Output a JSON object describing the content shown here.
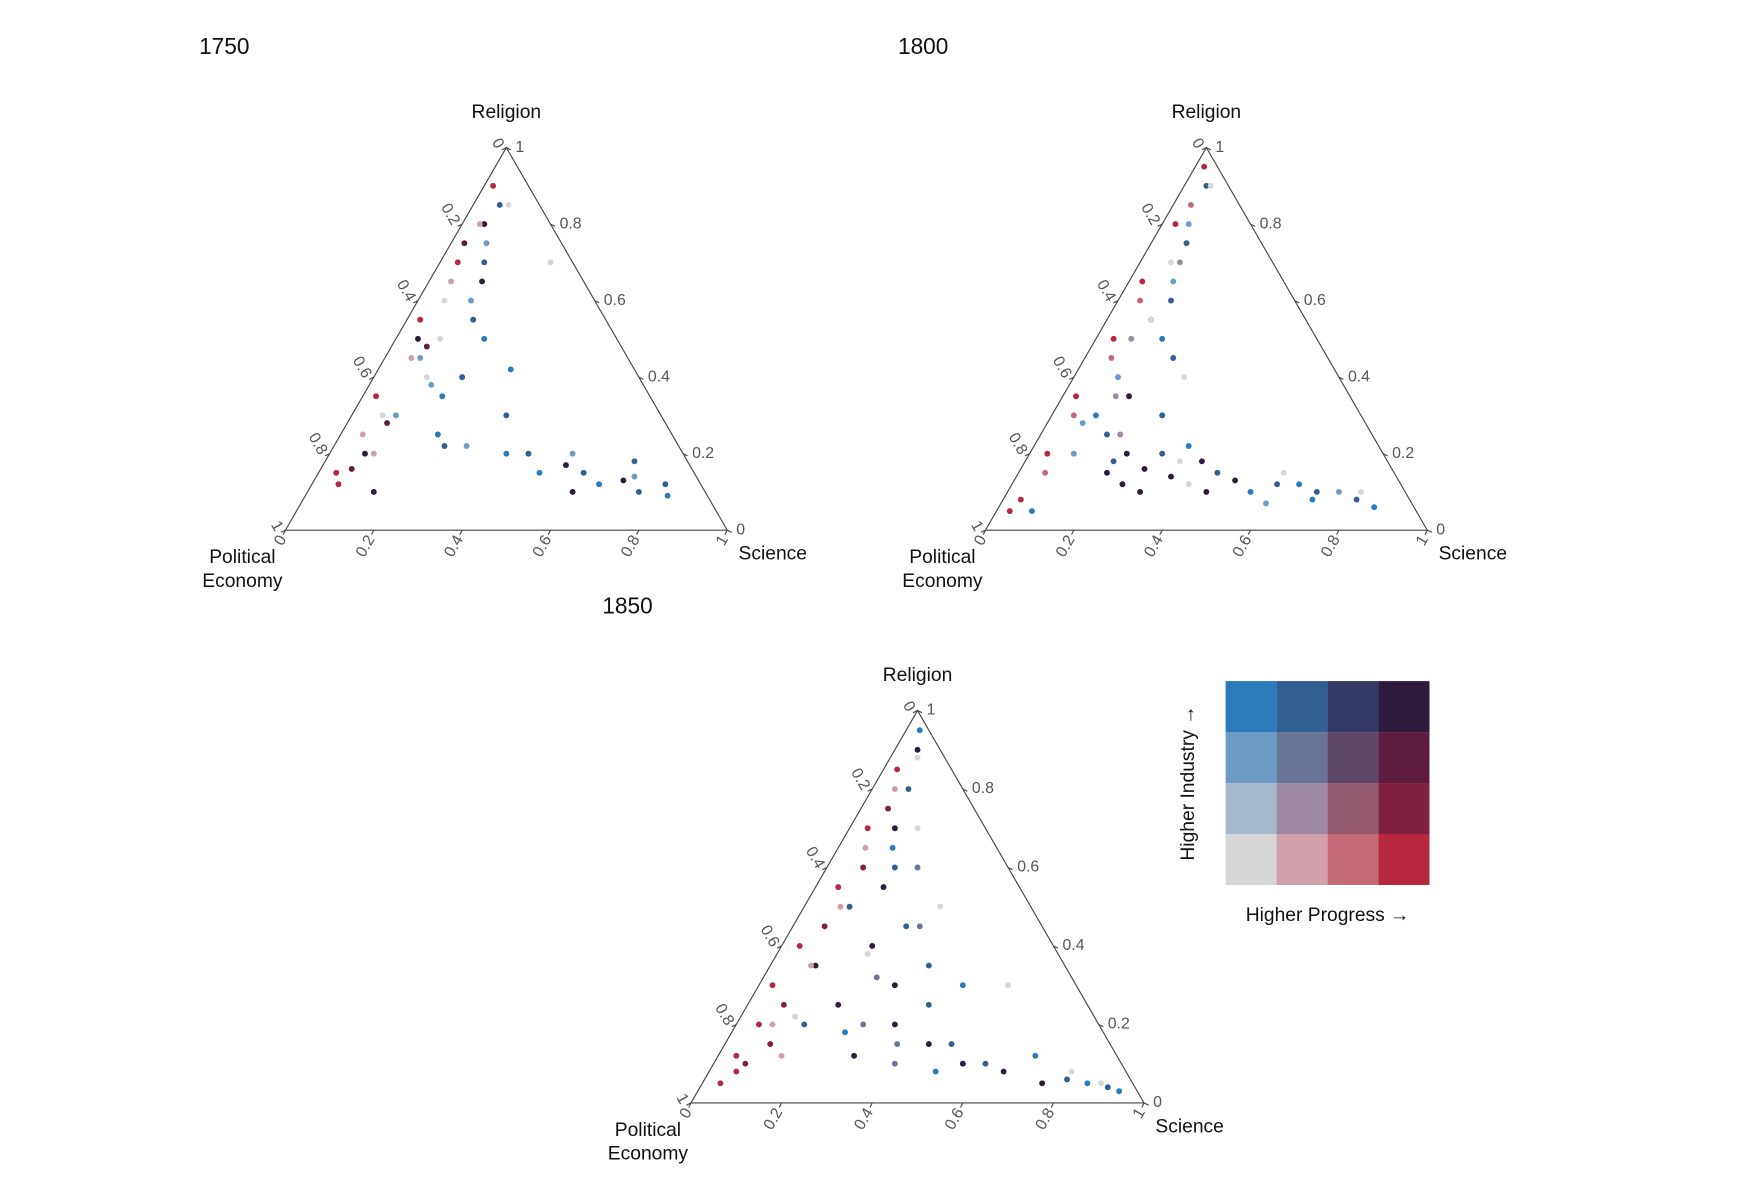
{
  "chart_data": [
    {
      "type": "ternary",
      "title": "1750",
      "top_label": "Religion",
      "right_label": "Science",
      "left_label": [
        "Political",
        "Economy"
      ],
      "ticks": [
        0,
        0.2,
        0.4,
        0.6,
        0.8,
        1
      ],
      "series": [
        {
          "color": "#2f5f93",
          "religion": [
            0.85,
            0.7,
            0.55,
            0.4,
            0.2,
            0.15,
            0.18,
            0.12,
            0.1,
            0.3,
            0.22
          ],
          "science": [
            0.06,
            0.1,
            0.15,
            0.2,
            0.45,
            0.6,
            0.7,
            0.8,
            0.75,
            0.35,
            0.25
          ]
        },
        {
          "color": "#6b9cc6",
          "religion": [
            0.75,
            0.6,
            0.45,
            0.3,
            0.22,
            0.2,
            0.14,
            0.38
          ],
          "science": [
            0.08,
            0.12,
            0.08,
            0.1,
            0.3,
            0.55,
            0.72,
            0.14
          ]
        },
        {
          "color": "#2b7bba",
          "religion": [
            0.5,
            0.35,
            0.25,
            0.15,
            0.12,
            0.09,
            0.2,
            0.42
          ],
          "science": [
            0.2,
            0.18,
            0.22,
            0.5,
            0.65,
            0.82,
            0.4,
            0.3
          ]
        },
        {
          "color": "#2f1b3e",
          "religion": [
            0.8,
            0.5,
            0.2,
            0.1,
            0.17,
            0.13,
            0.1,
            0.65
          ],
          "science": [
            0.05,
            0.05,
            0.08,
            0.15,
            0.55,
            0.7,
            0.6,
            0.12
          ]
        },
        {
          "color": "#b5283f",
          "religion": [
            0.9,
            0.7,
            0.35,
            0.15,
            0.12,
            0.55
          ],
          "science": [
            0.02,
            0.04,
            0.03,
            0.04,
            0.06,
            0.03
          ]
        },
        {
          "color": "#d6d6d6",
          "religion": [
            0.85,
            0.6,
            0.4,
            0.3,
            0.7,
            0.5
          ],
          "science": [
            0.08,
            0.06,
            0.12,
            0.07,
            0.25,
            0.1
          ]
        },
        {
          "color": "#cfa0aa",
          "religion": [
            0.65,
            0.45,
            0.25,
            0.2,
            0.8
          ],
          "science": [
            0.05,
            0.06,
            0.05,
            0.1,
            0.04
          ]
        },
        {
          "color": "#5e1c3e",
          "religion": [
            0.75,
            0.48,
            0.28,
            0.16
          ],
          "science": [
            0.03,
            0.08,
            0.09,
            0.07
          ]
        }
      ]
    },
    {
      "type": "ternary",
      "title": "1800",
      "top_label": "Religion",
      "right_label": "Science",
      "left_label": [
        "Political",
        "Economy"
      ],
      "ticks": [
        0,
        0.2,
        0.4,
        0.6,
        0.8,
        1
      ],
      "series": [
        {
          "color": "#2f5f93",
          "religion": [
            0.9,
            0.75,
            0.6,
            0.45,
            0.3,
            0.2,
            0.15,
            0.12,
            0.1,
            0.08,
            0.25,
            0.18
          ],
          "science": [
            0.05,
            0.08,
            0.12,
            0.2,
            0.25,
            0.3,
            0.45,
            0.6,
            0.7,
            0.8,
            0.15,
            0.2
          ]
        },
        {
          "color": "#2f1b3e",
          "religion": [
            0.15,
            0.12,
            0.1,
            0.14,
            0.18,
            0.2,
            0.13,
            0.16,
            0.1,
            0.55,
            0.35
          ],
          "science": [
            0.2,
            0.25,
            0.3,
            0.35,
            0.4,
            0.22,
            0.5,
            0.28,
            0.45,
            0.1,
            0.15
          ]
        },
        {
          "color": "#2b7bba",
          "religion": [
            0.5,
            0.3,
            0.1,
            0.08,
            0.06,
            0.12,
            0.22,
            0.05
          ],
          "science": [
            0.15,
            0.1,
            0.55,
            0.7,
            0.85,
            0.65,
            0.35,
            0.08
          ]
        },
        {
          "color": "#6b9cc6",
          "religion": [
            0.8,
            0.65,
            0.4,
            0.28,
            0.2,
            0.1,
            0.07
          ],
          "science": [
            0.06,
            0.1,
            0.1,
            0.08,
            0.1,
            0.75,
            0.6
          ]
        },
        {
          "color": "#b5283f",
          "religion": [
            0.95,
            0.8,
            0.65,
            0.5,
            0.35,
            0.2,
            0.08,
            0.05
          ],
          "science": [
            0.02,
            0.03,
            0.03,
            0.04,
            0.03,
            0.04,
            0.04,
            0.03
          ]
        },
        {
          "color": "#d6d6d6",
          "religion": [
            0.9,
            0.7,
            0.55,
            0.4,
            0.18,
            0.12,
            0.1,
            0.15
          ],
          "science": [
            0.06,
            0.07,
            0.1,
            0.25,
            0.35,
            0.4,
            0.8,
            0.6
          ]
        },
        {
          "color": "#c46a76",
          "religion": [
            0.85,
            0.6,
            0.45,
            0.3,
            0.15
          ],
          "science": [
            0.04,
            0.05,
            0.06,
            0.05,
            0.06
          ]
        },
        {
          "color": "#9e8aa2",
          "religion": [
            0.7,
            0.5,
            0.35,
            0.25
          ],
          "science": [
            0.09,
            0.08,
            0.12,
            0.18
          ]
        }
      ]
    },
    {
      "type": "ternary",
      "title": "1850",
      "top_label": "Religion",
      "right_label": "Science",
      "left_label": [
        "Political",
        "Economy"
      ],
      "ticks": [
        0,
        0.2,
        0.4,
        0.6,
        0.8,
        1
      ],
      "series": [
        {
          "color": "#2f1b3e",
          "religion": [
            0.9,
            0.7,
            0.55,
            0.4,
            0.3,
            0.2,
            0.15,
            0.1,
            0.08,
            0.05,
            0.35,
            0.25,
            0.12
          ],
          "science": [
            0.05,
            0.1,
            0.15,
            0.2,
            0.3,
            0.35,
            0.45,
            0.55,
            0.65,
            0.75,
            0.1,
            0.2,
            0.3
          ]
        },
        {
          "color": "#2f5f93",
          "religion": [
            0.8,
            0.6,
            0.45,
            0.35,
            0.25,
            0.15,
            0.1,
            0.06,
            0.04,
            0.2,
            0.5
          ],
          "science": [
            0.08,
            0.15,
            0.25,
            0.35,
            0.4,
            0.5,
            0.6,
            0.8,
            0.9,
            0.15,
            0.1
          ]
        },
        {
          "color": "#2b7bba",
          "religion": [
            0.95,
            0.65,
            0.3,
            0.12,
            0.05,
            0.03,
            0.08,
            0.18
          ],
          "science": [
            0.03,
            0.12,
            0.45,
            0.7,
            0.85,
            0.93,
            0.5,
            0.25
          ]
        },
        {
          "color": "#b5283f",
          "religion": [
            0.85,
            0.7,
            0.55,
            0.4,
            0.3,
            0.2,
            0.12,
            0.08,
            0.05
          ],
          "science": [
            0.03,
            0.04,
            0.05,
            0.04,
            0.03,
            0.05,
            0.04,
            0.06,
            0.04
          ]
        },
        {
          "color": "#82203f",
          "religion": [
            0.75,
            0.6,
            0.45,
            0.25,
            0.15,
            0.1
          ],
          "science": [
            0.06,
            0.08,
            0.07,
            0.08,
            0.1,
            0.07
          ]
        },
        {
          "color": "#d6d6d6",
          "religion": [
            0.88,
            0.7,
            0.5,
            0.38,
            0.22,
            0.08,
            0.05,
            0.3
          ],
          "science": [
            0.06,
            0.15,
            0.3,
            0.2,
            0.12,
            0.8,
            0.88,
            0.55
          ]
        },
        {
          "color": "#cfa0aa",
          "religion": [
            0.8,
            0.65,
            0.5,
            0.35,
            0.2,
            0.12
          ],
          "science": [
            0.05,
            0.06,
            0.08,
            0.09,
            0.08,
            0.14
          ]
        },
        {
          "color": "#6a7498",
          "religion": [
            0.6,
            0.45,
            0.32,
            0.2,
            0.15,
            0.1
          ],
          "science": [
            0.2,
            0.28,
            0.25,
            0.28,
            0.38,
            0.4
          ]
        }
      ]
    }
  ],
  "legend": {
    "colors": [
      [
        "#2b7bba",
        "#2f5f93",
        "#343a63",
        "#2f1b3e"
      ],
      [
        "#6b9cc6",
        "#6a7498",
        "#5e4868",
        "#5e1c3e"
      ],
      [
        "#a5b8cc",
        "#9e8aa2",
        "#955a70",
        "#82203f"
      ],
      [
        "#d6d6d6",
        "#cfa0aa",
        "#c46a76",
        "#b5283f"
      ]
    ],
    "y_label": "Higher Industry →",
    "x_label": "Higher Progress →"
  }
}
